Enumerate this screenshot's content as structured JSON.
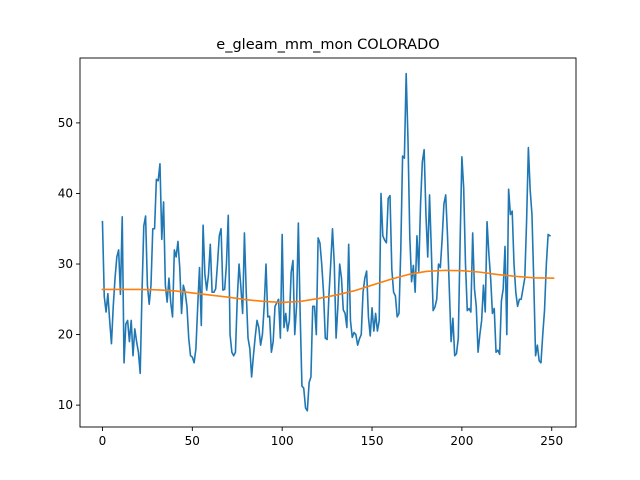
{
  "chart_data": {
    "type": "line",
    "title": "e_gleam_mm_mon COLORADO",
    "xlabel": "",
    "ylabel": "",
    "xlim": [
      -12.5,
      263.5
    ],
    "ylim": [
      6.9,
      59.2
    ],
    "xticks": [
      0,
      50,
      100,
      150,
      200,
      250
    ],
    "yticks": [
      10,
      20,
      30,
      40,
      50
    ],
    "grid": false,
    "legend": "none",
    "series": [
      {
        "color": "#1f77b4",
        "values": [
          36.0,
          25.4,
          23.2,
          25.8,
          22.0,
          18.7,
          24.0,
          28.0,
          31.0,
          32.0,
          25.7,
          36.7,
          16.0,
          21.5,
          22.0,
          19.0,
          22.0,
          17.0,
          20.8,
          19.0,
          17.5,
          14.5,
          26.0,
          35.4,
          36.8,
          27.0,
          24.3,
          27.0,
          35.0,
          35.0,
          42.0,
          41.8,
          44.2,
          33.5,
          38.8,
          27.0,
          24.6,
          28.0,
          24.5,
          22.5,
          32.0,
          31.0,
          33.2,
          29.5,
          23.0,
          27.0,
          26.0,
          24.0,
          19.5,
          17.0,
          16.8,
          16.0,
          18.0,
          24.0,
          29.5,
          21.3,
          35.5,
          28.5,
          26.3,
          28.5,
          32.8,
          26.0,
          26.0,
          26.5,
          30.0,
          34.0,
          35.0,
          26.3,
          26.4,
          30.0,
          36.9,
          20.0,
          17.5,
          17.0,
          17.5,
          25.0,
          30.0,
          26.8,
          23.0,
          34.4,
          26.0,
          19.5,
          18.0,
          14.0,
          17.0,
          19.7,
          22.0,
          21.0,
          18.5,
          20.0,
          24.0,
          30.0,
          22.5,
          22.6,
          17.5,
          19.0,
          24.0,
          24.5,
          25.0,
          19.5,
          34.2,
          21.0,
          23.0,
          20.5,
          22.0,
          28.8,
          30.5,
          20.0,
          24.0,
          35.8,
          23.0,
          12.7,
          12.4,
          9.6,
          9.2,
          13.2,
          14.0,
          24.0,
          24.0,
          20.0,
          33.7,
          33.0,
          30.0,
          26.0,
          19.5,
          19.3,
          25.5,
          30.0,
          35.0,
          30.0,
          19.5,
          24.0,
          30.0,
          28.0,
          23.5,
          23.0,
          21.0,
          32.8,
          22.0,
          19.6,
          20.3,
          20.0,
          18.5,
          19.4,
          20.0,
          26.0,
          28.0,
          29.0,
          22.5,
          19.8,
          23.8,
          20.5,
          23.0,
          20.5,
          22.0,
          40.0,
          34.0,
          33.4,
          33.0,
          39.3,
          39.7,
          29.3,
          26.0,
          25.5,
          22.5,
          23.0,
          32.0,
          45.3,
          45.0,
          57.0,
          47.7,
          34.0,
          27.5,
          29.8,
          26.0,
          34.0,
          29.0,
          38.5,
          44.5,
          46.2,
          37.0,
          31.0,
          39.8,
          32.0,
          23.4,
          23.9,
          25.0,
          30.0,
          29.5,
          33.5,
          38.5,
          39.8,
          34.0,
          26.5,
          19.0,
          22.3,
          17.0,
          17.3,
          19.5,
          33.0,
          45.2,
          40.8,
          30.0,
          23.4,
          23.7,
          23.2,
          34.4,
          26.5,
          24.0,
          17.5,
          20.0,
          22.0,
          27.0,
          23.2,
          36.0,
          31.5,
          28.0,
          23.0,
          23.7,
          17.5,
          17.8,
          17.2,
          24.8,
          26.5,
          32.5,
          20.0,
          40.6,
          37.0,
          37.5,
          30.0,
          26.0,
          24.0,
          25.0,
          25.0,
          26.5,
          28.0,
          36.0,
          46.5,
          40.5,
          37.0,
          27.5,
          17.0,
          18.5,
          16.3,
          16.0,
          20.0,
          23.5,
          30.0,
          34.2,
          34.0
        ]
      },
      {
        "color": "#ff7f0e",
        "x": [
          0,
          10,
          20,
          30,
          40,
          50,
          60,
          70,
          80,
          90,
          100,
          110,
          120,
          130,
          140,
          150,
          160,
          170,
          180,
          190,
          200,
          210,
          220,
          230,
          240,
          251
        ],
        "values": [
          26.4,
          26.4,
          26.4,
          26.35,
          26.2,
          25.9,
          25.6,
          25.3,
          24.95,
          24.7,
          24.55,
          24.7,
          25.1,
          25.6,
          26.2,
          27.0,
          27.8,
          28.5,
          28.95,
          29.1,
          29.05,
          28.85,
          28.5,
          28.25,
          28.05,
          28.0
        ]
      }
    ]
  }
}
